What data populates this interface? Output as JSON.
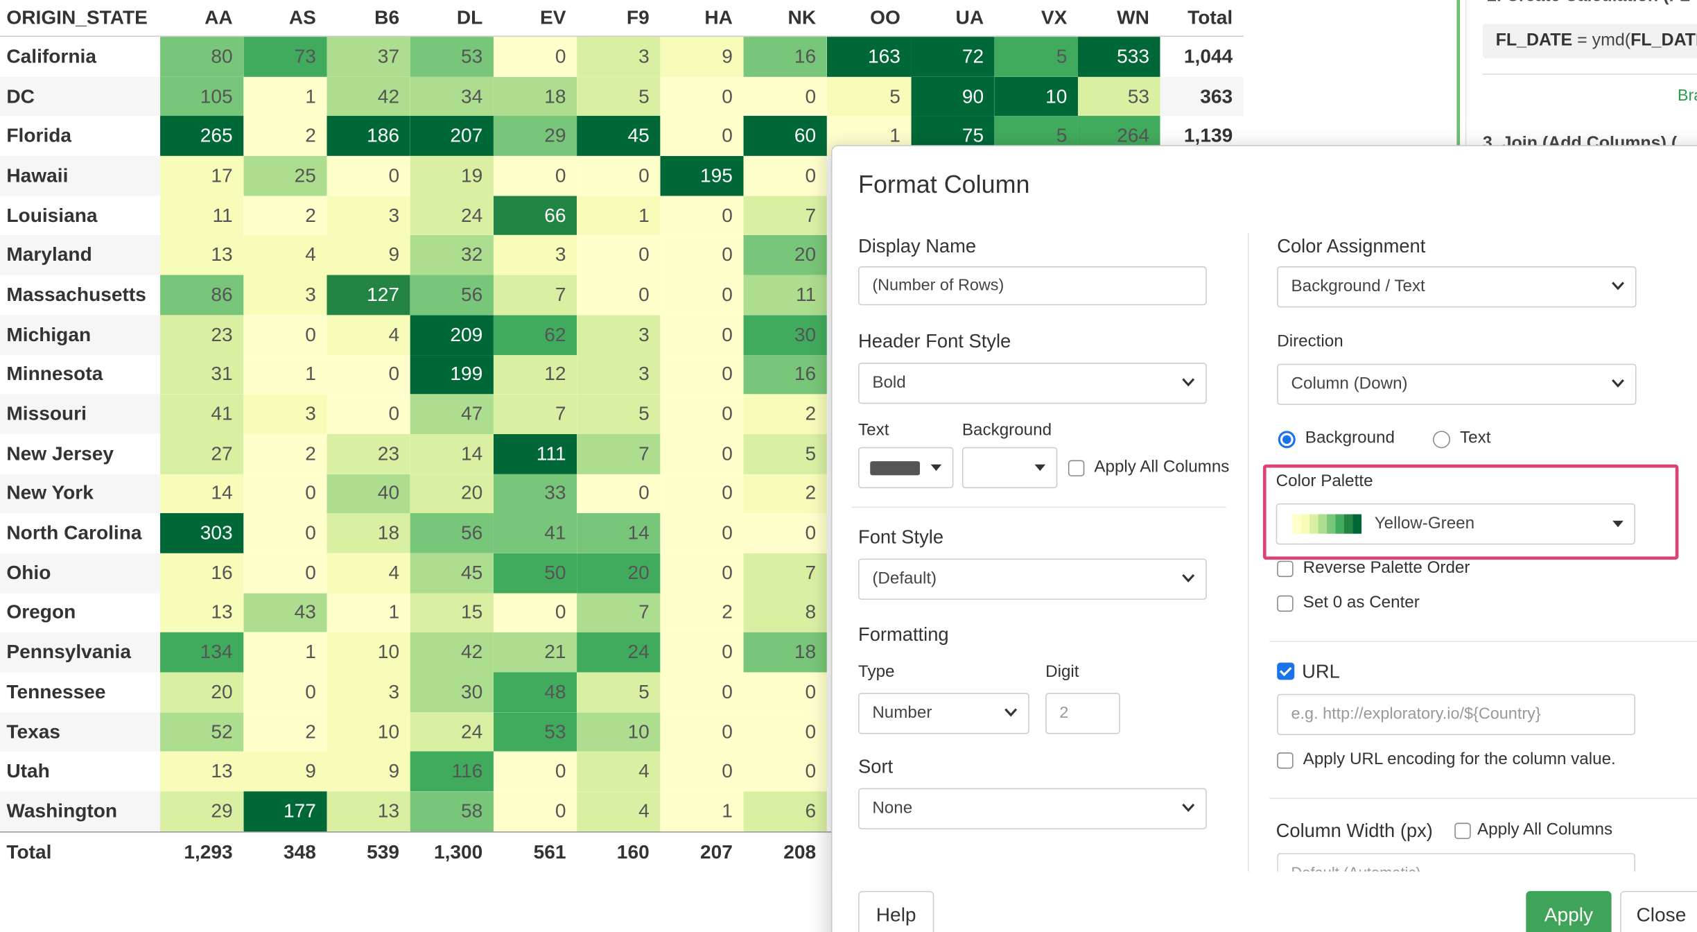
{
  "table": {
    "corner": "ORIGIN_STATE",
    "columns": [
      "AA",
      "AS",
      "B6",
      "DL",
      "EV",
      "F9",
      "HA",
      "NK",
      "OO",
      "UA",
      "VX",
      "WN",
      "Total"
    ],
    "rows": [
      {
        "label": "California",
        "values": [
          "80",
          "73",
          "37",
          "53",
          "0",
          "3",
          "9",
          "16",
          "163",
          "72",
          "5",
          "533"
        ],
        "total": "1,044"
      },
      {
        "label": "DC",
        "values": [
          "105",
          "1",
          "42",
          "34",
          "18",
          "5",
          "0",
          "0",
          "5",
          "90",
          "10",
          "53"
        ],
        "total": "363"
      },
      {
        "label": "Florida",
        "values": [
          "265",
          "2",
          "186",
          "207",
          "29",
          "45",
          "0",
          "60",
          "1",
          "75",
          "5",
          "264"
        ],
        "total": "1,139"
      },
      {
        "label": "Hawaii",
        "values": [
          "17",
          "25",
          "0",
          "19",
          "0",
          "0",
          "195",
          "0",
          "",
          "",
          "",
          ""
        ],
        "total": ""
      },
      {
        "label": "Louisiana",
        "values": [
          "11",
          "2",
          "3",
          "24",
          "66",
          "1",
          "0",
          "7",
          "",
          "",
          "",
          ""
        ],
        "total": ""
      },
      {
        "label": "Maryland",
        "values": [
          "13",
          "4",
          "9",
          "32",
          "3",
          "0",
          "0",
          "20",
          "",
          "",
          "",
          ""
        ],
        "total": ""
      },
      {
        "label": "Massachusetts",
        "values": [
          "86",
          "3",
          "127",
          "56",
          "7",
          "0",
          "0",
          "11",
          "",
          "",
          "",
          ""
        ],
        "total": ""
      },
      {
        "label": "Michigan",
        "values": [
          "23",
          "0",
          "4",
          "209",
          "62",
          "3",
          "0",
          "30",
          "",
          "",
          "",
          ""
        ],
        "total": ""
      },
      {
        "label": "Minnesota",
        "values": [
          "31",
          "1",
          "0",
          "199",
          "12",
          "3",
          "0",
          "16",
          "",
          "",
          "",
          ""
        ],
        "total": ""
      },
      {
        "label": "Missouri",
        "values": [
          "41",
          "3",
          "0",
          "47",
          "7",
          "5",
          "0",
          "2",
          "",
          "",
          "",
          ""
        ],
        "total": ""
      },
      {
        "label": "New Jersey",
        "values": [
          "27",
          "2",
          "23",
          "14",
          "111",
          "7",
          "0",
          "5",
          "",
          "",
          "",
          ""
        ],
        "total": ""
      },
      {
        "label": "New York",
        "values": [
          "14",
          "0",
          "40",
          "20",
          "33",
          "0",
          "0",
          "2",
          "",
          "",
          "",
          ""
        ],
        "total": ""
      },
      {
        "label": "North Carolina",
        "values": [
          "303",
          "0",
          "18",
          "56",
          "41",
          "14",
          "0",
          "0",
          "",
          "",
          "",
          ""
        ],
        "total": ""
      },
      {
        "label": "Ohio",
        "values": [
          "16",
          "0",
          "4",
          "45",
          "50",
          "20",
          "0",
          "7",
          "",
          "",
          "",
          ""
        ],
        "total": ""
      },
      {
        "label": "Oregon",
        "values": [
          "13",
          "43",
          "1",
          "15",
          "0",
          "7",
          "2",
          "8",
          "",
          "",
          "",
          ""
        ],
        "total": ""
      },
      {
        "label": "Pennsylvania",
        "values": [
          "134",
          "1",
          "10",
          "42",
          "21",
          "24",
          "0",
          "18",
          "",
          "",
          "",
          ""
        ],
        "total": ""
      },
      {
        "label": "Tennessee",
        "values": [
          "20",
          "0",
          "3",
          "30",
          "48",
          "5",
          "0",
          "0",
          "",
          "",
          "",
          ""
        ],
        "total": ""
      },
      {
        "label": "Texas",
        "values": [
          "52",
          "2",
          "10",
          "24",
          "53",
          "10",
          "0",
          "0",
          "",
          "",
          "",
          ""
        ],
        "total": ""
      },
      {
        "label": "Utah",
        "values": [
          "13",
          "9",
          "9",
          "116",
          "0",
          "4",
          "0",
          "0",
          "",
          "",
          "",
          ""
        ],
        "total": ""
      },
      {
        "label": "Washington",
        "values": [
          "29",
          "177",
          "13",
          "58",
          "0",
          "4",
          "1",
          "6",
          "",
          "",
          "",
          ""
        ],
        "total": ""
      }
    ],
    "footer": {
      "label": "Total",
      "values": [
        "1,293",
        "348",
        "539",
        "1,300",
        "561",
        "160",
        "207",
        "208",
        "",
        "",
        "",
        ""
      ],
      "total": ""
    }
  },
  "palette_colors": [
    "#ffffcc",
    "#f7fcb9",
    "#d9f0a3",
    "#addd8e",
    "#78c679",
    "#41ab5d",
    "#238443",
    "#006837"
  ],
  "right_panel": {
    "step2": "2. Create Calculation (FL",
    "code_name": "FL_DATE",
    "code_expr": " = ymd(",
    "code_arg": "FL_DATE",
    "code_tail": ")",
    "link": "Bra",
    "step3": "3. Join (Add Columns) ("
  },
  "dialog": {
    "title": "Format Column",
    "display_name_label": "Display Name",
    "display_name_value": "(Number of Rows)",
    "header_font_style_label": "Header Font Style",
    "header_font_style_value": "Bold",
    "text_label": "Text",
    "background_label": "Background",
    "apply_all_columns": "Apply All Columns",
    "font_style_label": "Font Style",
    "font_style_value": "(Default)",
    "formatting_label": "Formatting",
    "type_label": "Type",
    "type_value": "Number",
    "digit_label": "Digit",
    "digit_placeholder": "2",
    "sort_label": "Sort",
    "sort_value": "None",
    "color_assignment_label": "Color Assignment",
    "color_assignment_value": "Background / Text",
    "direction_label": "Direction",
    "direction_value": "Column (Down)",
    "radio_background": "Background",
    "radio_text": "Text",
    "color_palette_label": "Color Palette",
    "color_palette_value": "Yellow-Green",
    "reverse_palette": "Reverse Palette Order",
    "set_zero_center": "Set 0 as Center",
    "url_label": "URL",
    "url_placeholder": "e.g. http://exploratory.io/${Country}",
    "url_encoding": "Apply URL encoding for the column value.",
    "column_width_label": "Column Width (px)",
    "column_width_apply_all": "Apply All Columns",
    "column_width_placeholder": "Default (Automatic)",
    "help_button": "Help",
    "apply_button": "Apply",
    "close_button": "Close"
  }
}
